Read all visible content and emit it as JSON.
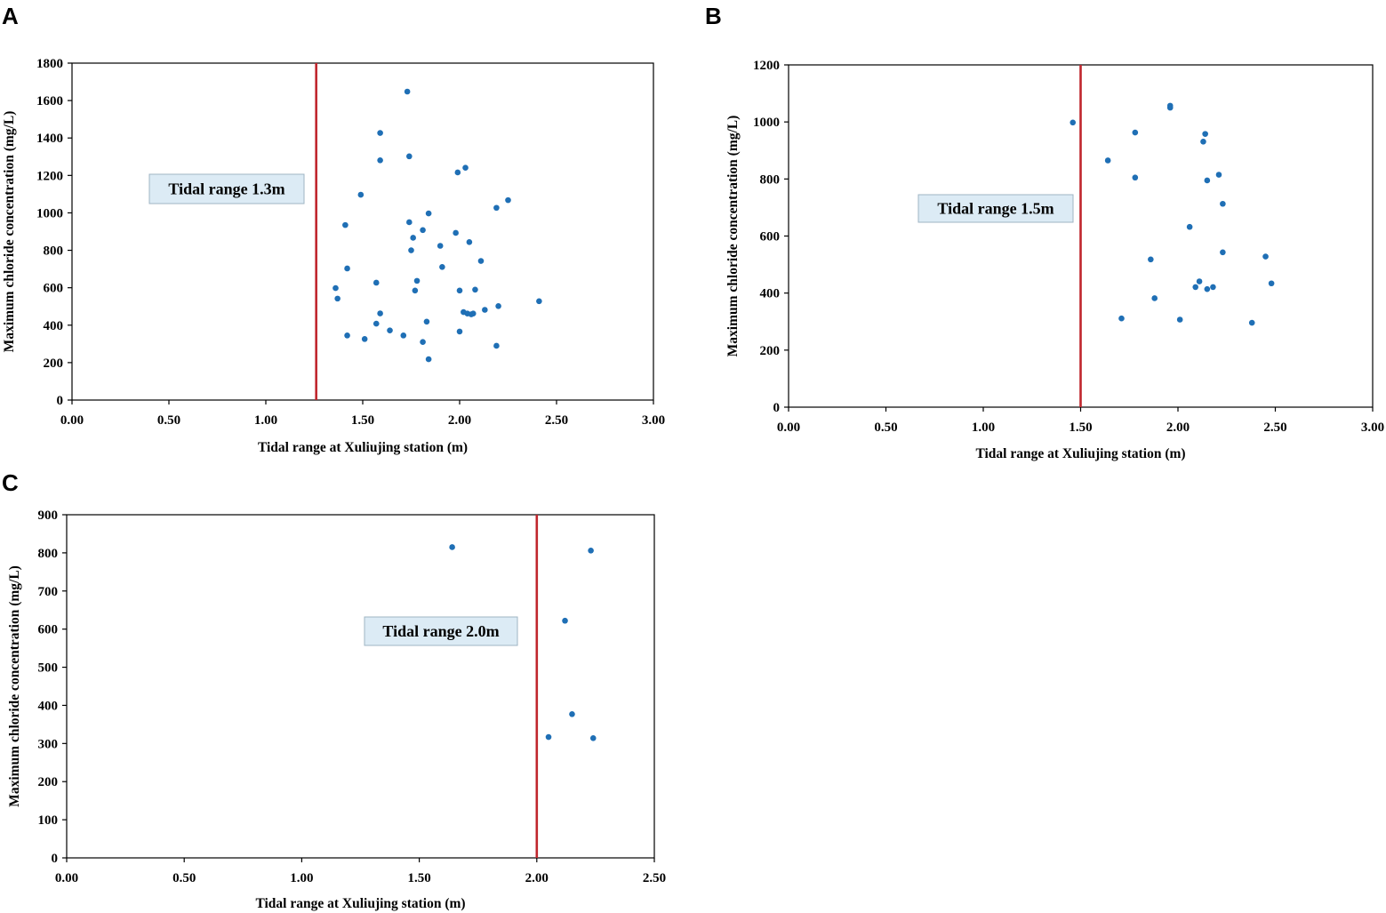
{
  "colors": {
    "point": "#1f6fb5",
    "threshold_line": "#c0262d",
    "annotation_fill": "#dcebf5",
    "annotation_stroke": "#9fb4c3",
    "axis": "#000000"
  },
  "chart_data": [
    {
      "panel": "A",
      "type": "scatter",
      "title": "",
      "xlabel": "Tidal range at Xuliujing station (m)",
      "ylabel": "Maximum chloride concentration (mg/L)",
      "xlim": [
        0,
        3
      ],
      "ylim": [
        0,
        1800
      ],
      "xticks": [
        0,
        0.5,
        1,
        1.5,
        2,
        2.5,
        3
      ],
      "xtick_labels": [
        "0.00",
        "0.50",
        "1.00",
        "1.50",
        "2.00",
        "2.50",
        "3.00"
      ],
      "yticks": [
        0,
        200,
        400,
        600,
        800,
        1000,
        1200,
        1400,
        1600,
        1800
      ],
      "ytick_labels": [
        "0",
        "200",
        "400",
        "600",
        "800",
        "1000",
        "1200",
        "1400",
        "1600",
        "1800"
      ],
      "threshold": 1.26,
      "annotation": "Tidal range 1.3m",
      "points": [
        [
          1.73,
          1648
        ],
        [
          1.59,
          1427
        ],
        [
          1.74,
          1302
        ],
        [
          1.59,
          1281
        ],
        [
          1.99,
          1216
        ],
        [
          2.03,
          1241
        ],
        [
          1.49,
          1097
        ],
        [
          2.25,
          1068
        ],
        [
          2.19,
          1027
        ],
        [
          1.41,
          935
        ],
        [
          1.74,
          950
        ],
        [
          1.84,
          997
        ],
        [
          1.81,
          908
        ],
        [
          1.98,
          893
        ],
        [
          1.76,
          867
        ],
        [
          1.9,
          824
        ],
        [
          2.05,
          844
        ],
        [
          1.75,
          800
        ],
        [
          2.11,
          743
        ],
        [
          1.42,
          703
        ],
        [
          1.91,
          711
        ],
        [
          1.57,
          627
        ],
        [
          1.78,
          637
        ],
        [
          1.36,
          598
        ],
        [
          1.77,
          585
        ],
        [
          2.0,
          585
        ],
        [
          2.08,
          590
        ],
        [
          1.37,
          542
        ],
        [
          2.41,
          528
        ],
        [
          2.2,
          502
        ],
        [
          2.13,
          482
        ],
        [
          2.02,
          470
        ],
        [
          2.04,
          462
        ],
        [
          2.06,
          458
        ],
        [
          2.07,
          462
        ],
        [
          1.59,
          463
        ],
        [
          1.83,
          419
        ],
        [
          1.57,
          408
        ],
        [
          1.64,
          372
        ],
        [
          2.0,
          366
        ],
        [
          1.42,
          345
        ],
        [
          1.71,
          345
        ],
        [
          1.51,
          326
        ],
        [
          1.81,
          310
        ],
        [
          2.19,
          290
        ],
        [
          1.84,
          218
        ]
      ]
    },
    {
      "panel": "B",
      "type": "scatter",
      "title": "",
      "xlabel": "Tidal range at Xuliujing station (m)",
      "ylabel": "Maximum chloride concentration (mg/L)",
      "xlim": [
        0,
        3
      ],
      "ylim": [
        0,
        1200
      ],
      "xticks": [
        0,
        0.5,
        1,
        1.5,
        2,
        2.5,
        3
      ],
      "xtick_labels": [
        "0.00",
        "0.50",
        "1.00",
        "1.50",
        "2.00",
        "2.50",
        "3.00"
      ],
      "yticks": [
        0,
        200,
        400,
        600,
        800,
        1000,
        1200
      ],
      "ytick_labels": [
        "0",
        "200",
        "400",
        "600",
        "800",
        "1000",
        "1200"
      ],
      "threshold": 1.5,
      "annotation": "Tidal range 1.5m",
      "points": [
        [
          1.96,
          1057
        ],
        [
          1.96,
          1050
        ],
        [
          1.46,
          998
        ],
        [
          1.78,
          963
        ],
        [
          2.14,
          958
        ],
        [
          2.13,
          931
        ],
        [
          1.64,
          865
        ],
        [
          2.21,
          815
        ],
        [
          1.78,
          805
        ],
        [
          2.15,
          795
        ],
        [
          2.23,
          713
        ],
        [
          2.06,
          632
        ],
        [
          2.23,
          543
        ],
        [
          2.45,
          528
        ],
        [
          1.86,
          518
        ],
        [
          2.48,
          434
        ],
        [
          2.11,
          441
        ],
        [
          2.09,
          421
        ],
        [
          2.18,
          421
        ],
        [
          2.15,
          414
        ],
        [
          1.88,
          382
        ],
        [
          1.71,
          311
        ],
        [
          2.01,
          307
        ],
        [
          2.38,
          296
        ]
      ]
    },
    {
      "panel": "C",
      "type": "scatter",
      "title": "",
      "xlabel": "Tidal range at Xuliujing station (m)",
      "ylabel": "Maximum chloride concentration (mg/L)",
      "xlim": [
        0,
        2.5
      ],
      "ylim": [
        0,
        900
      ],
      "xticks": [
        0,
        0.5,
        1,
        1.5,
        2,
        2.5
      ],
      "xtick_labels": [
        "0.00",
        "0.50",
        "1.00",
        "1.50",
        "2.00",
        "2.50"
      ],
      "yticks": [
        0,
        100,
        200,
        300,
        400,
        500,
        600,
        700,
        800,
        900
      ],
      "ytick_labels": [
        "0",
        "100",
        "200",
        "300",
        "400",
        "500",
        "600",
        "700",
        "800",
        "900"
      ],
      "threshold": 2.0,
      "annotation": "Tidal range 2.0m",
      "points": [
        [
          1.64,
          815
        ],
        [
          2.23,
          806
        ],
        [
          2.12,
          622
        ],
        [
          2.15,
          377
        ],
        [
          2.05,
          317
        ],
        [
          2.24,
          314
        ]
      ]
    }
  ]
}
